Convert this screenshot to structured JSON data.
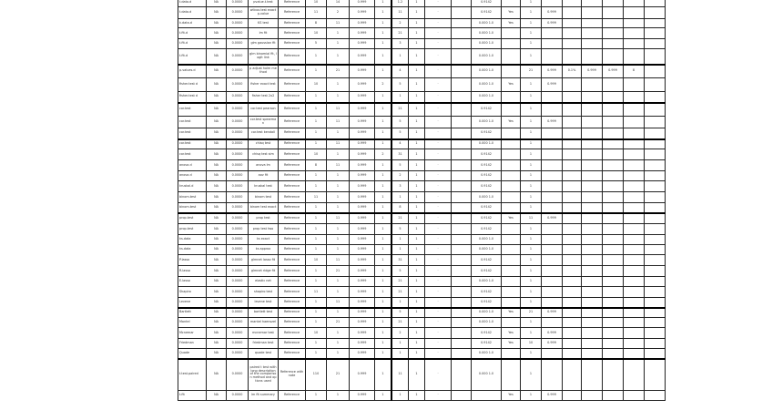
{
  "sheet": {
    "rows": [
      [
        "t.data.d",
        "NA",
        "0.0000",
        "pvalue.t.test",
        "Reference",
        "10",
        "14",
        "0.999",
        "1",
        "1.2",
        "1",
        "·",
        "",
        "0.9142",
        "",
        "1",
        "",
        "",
        "",
        "",
        "",
        ""
      ],
      [
        "t.data.d",
        "NA",
        "0.0000",
        "wilcox.test exact p-value",
        "Reference",
        "11",
        "2",
        "0.999",
        "1",
        "11",
        "1",
        "·",
        "",
        "0.9142",
        "Yes",
        "1",
        "0.999",
        "",
        "",
        "",
        "",
        ""
      ],
      [
        "k.data.d",
        "NA",
        "0.0000",
        "KS test",
        "Reference",
        "8",
        "11",
        "0.999",
        "1",
        "2",
        "1",
        "·",
        "",
        "0.000 1.0",
        "Yes",
        "1",
        "0.999",
        "",
        "",
        "",
        "",
        ""
      ],
      [
        "t.fit.d",
        "NA",
        "0.0000",
        "lm fit",
        "Reference",
        "10",
        "1",
        "0.999",
        "1",
        "21",
        "1",
        "·",
        "",
        "0.000 1.0",
        "",
        "1",
        "",
        "",
        "",
        "",
        "",
        ""
      ],
      [
        "t.fit.d",
        "NA",
        "0.0000",
        "glm gaussian fit",
        "Reference",
        "5",
        "1",
        "0.999",
        "1",
        "3",
        "1",
        "·",
        "",
        "0.000 1.0",
        "",
        "1",
        "",
        "",
        "",
        "",
        "",
        ""
      ],
      [
        "t.fit.d",
        "NA",
        "0.0000",
        "glm binomial fit, logit link",
        "Reference",
        "1",
        "1",
        "0.999",
        "1",
        "1",
        "1",
        "·",
        "",
        "0.000 1.0",
        "",
        "1",
        "",
        "",
        "",
        "",
        "",
        ""
      ],
      [
        "p.values.d",
        "NA",
        "0.0000",
        "p adjust holm method",
        "Reference",
        "1",
        "21",
        "0.999",
        "1",
        "4",
        "1",
        "·",
        "",
        "0.000 1.0",
        "",
        "21",
        "0.999",
        "0.1%",
        "0.999",
        "0.999",
        "8",
        ""
      ],
      [
        "fisher.test d",
        "NA",
        "0.0000",
        "fisher exact test",
        "Reference",
        "10",
        "1",
        "0.999",
        "2",
        "5",
        "1",
        "·",
        "",
        "0.000 1.0",
        "Yes",
        "1",
        "0.999",
        "",
        "",
        "",
        "",
        ""
      ],
      [
        "fisher.test d",
        "NA",
        "0.0000",
        "fisher test 2x2",
        "Reference",
        "1",
        "1",
        "0.999",
        "1",
        "1",
        "1",
        "·",
        "",
        "0.000 1.0",
        "",
        "1",
        "",
        "",
        "",
        "",
        "",
        ""
      ],
      [
        "cor.test",
        "NA",
        "0.0000",
        "cor.test pearson",
        "Reference",
        "1",
        "11",
        "0.999",
        "1",
        "21",
        "1",
        "·",
        "",
        "0.9142",
        "",
        "1",
        "",
        "",
        "",
        "",
        "",
        ""
      ],
      [
        "cor.test",
        "NA",
        "0.0000",
        "cor.test spearman",
        "Reference",
        "1",
        "11",
        "0.999",
        "1",
        "5",
        "1",
        "·",
        "",
        "0.000 1.0",
        "Yes",
        "1",
        "0.999",
        "",
        "",
        "",
        "",
        ""
      ],
      [
        "cor.test",
        "NA",
        "0.0000",
        "cor.test kendall",
        "Reference",
        "1",
        "1",
        "0.999",
        "1",
        "5",
        "1",
        "·",
        "",
        "0.9142",
        "",
        "1",
        "",
        "",
        "",
        "",
        "",
        ""
      ],
      [
        "cor.test",
        "NA",
        "0.0000",
        "chisq test",
        "Reference",
        "1",
        "11",
        "0.999",
        "1",
        "4",
        "1",
        "·",
        "",
        "0.000 1.0",
        "",
        "1",
        "",
        "",
        "",
        "",
        "",
        ""
      ],
      [
        "cor.test",
        "NA",
        "0.0000",
        "chisq test sim",
        "Reference",
        "10",
        "1",
        "0.999",
        "2",
        "31",
        "1",
        "·",
        "",
        "0.9142",
        "",
        "1",
        "",
        "",
        "",
        "",
        "",
        ""
      ],
      [
        "anova.d",
        "NA",
        "0.0000",
        "anova lm",
        "Reference",
        "8",
        "11",
        "0.999",
        "1",
        "5",
        "1",
        "·",
        "",
        "0.9142",
        "",
        "1",
        "",
        "",
        "",
        "",
        "",
        ""
      ],
      [
        "anova.d",
        "NA",
        "0.0000",
        "aov fit",
        "Reference",
        "1",
        "1",
        "0.999",
        "1",
        "2",
        "1",
        "·",
        "",
        "0.9142",
        "",
        "1",
        "",
        "",
        "",
        "",
        "",
        ""
      ],
      [
        "kruskal.d",
        "NA",
        "0.0000",
        "kruskal test",
        "Reference",
        "1",
        "1",
        "0.999",
        "1",
        "3",
        "1",
        "·",
        "",
        "0.9142",
        "",
        "1",
        "",
        "",
        "",
        "",
        "",
        ""
      ],
      [
        "binom.test",
        "NA",
        "0.0000",
        "binom test",
        "Reference",
        "11",
        "1",
        "0.999",
        "1",
        "1",
        "1",
        "·",
        "",
        "0.000 1.0",
        "",
        "1",
        "",
        "",
        "",
        "",
        "",
        ""
      ],
      [
        "binom.test",
        "NA",
        "0.0000",
        "binom test exact",
        "Reference",
        "1",
        "1",
        "0.999",
        "1",
        "8",
        "1",
        "·",
        "",
        "0.9142",
        "",
        "1",
        "",
        "",
        "",
        "",
        "",
        ""
      ],
      [
        "prop.test",
        "NA",
        "0.0000",
        "prop test",
        "Reference",
        "1",
        "11",
        "0.999",
        "1",
        "21",
        "1",
        "·",
        "",
        "0.9142",
        "Yes",
        "11",
        "0.999",
        "",
        "",
        "",
        "",
        ""
      ],
      [
        "prop.test",
        "NA",
        "0.0000",
        "prop test two",
        "Reference",
        "1",
        "1",
        "0.999",
        "1",
        "5",
        "1",
        "·",
        "",
        "0.9142",
        "",
        "1",
        "",
        "",
        "",
        "",
        "",
        ""
      ],
      [
        "ks.data",
        "NA",
        "0.0000",
        "ks exact",
        "Reference",
        "1",
        "1",
        "0.999",
        "1",
        "1",
        "1",
        "·",
        "",
        "0.000 1.0",
        "",
        "1",
        "",
        "",
        "",
        "",
        "",
        ""
      ],
      [
        "ks.data",
        "NA",
        "0.0000",
        "ks approx",
        "Reference",
        "1",
        "1",
        "0.999",
        "1",
        "1",
        "1",
        "·",
        "",
        "0.000 1.0",
        "",
        "1",
        "",
        "",
        "",
        "",
        "",
        ""
      ],
      [
        "P.lasso",
        "NA",
        "0.0000",
        "glmnet lasso fit",
        "Reference",
        "10",
        "11",
        "0.999",
        "1",
        "31",
        "1",
        "·",
        "",
        "0.9142",
        "",
        "1",
        "",
        "",
        "",
        "",
        "",
        ""
      ],
      [
        "R.lasso",
        "NA",
        "0.0000",
        "glmnet ridge fit",
        "Reference",
        "1",
        "21",
        "0.999",
        "1",
        "5",
        "1",
        "·",
        "",
        "0.9142",
        "",
        "1",
        "",
        "",
        "",
        "",
        "",
        ""
      ],
      [
        "E.lasso",
        "NA",
        "0.0000",
        "elastic net",
        "Reference",
        "1",
        "1",
        "0.999",
        "1",
        "21",
        "1",
        "·",
        "",
        "0.000 1.0",
        "",
        "1",
        "",
        "",
        "",
        "",
        "",
        ""
      ],
      [
        "Shapiro",
        "NA",
        "0.0000",
        "shapiro test",
        "Reference",
        "11",
        "1",
        "0.999",
        "1",
        "21",
        "1",
        "·",
        "",
        "0.9142",
        "",
        "1",
        "",
        "",
        "",
        "",
        "",
        ""
      ],
      [
        "Levene",
        "NA",
        "0.0000",
        "levene test",
        "Reference",
        "1",
        "11",
        "0.999",
        "1",
        "1",
        "1",
        "·",
        "",
        "0.9142",
        "",
        "1",
        "",
        "",
        "",
        "",
        "",
        ""
      ],
      [
        "Bartlett",
        "NA",
        "0.0000",
        "bartlett test",
        "Reference",
        "1",
        "1",
        "0.999",
        "1",
        "5",
        "1",
        "·",
        "",
        "0.000 1.0",
        "Yes",
        "21",
        "0.999",
        "",
        "",
        "",
        "",
        ""
      ],
      [
        "Mantel",
        "NA",
        "0.0000",
        "mantel haenszel",
        "Reference",
        "1",
        "21",
        "0.999",
        "1",
        "21",
        "1",
        "·",
        "",
        "0.000 1.0",
        "",
        "1",
        "",
        "",
        "",
        "",
        "",
        ""
      ],
      [
        "Mcnemar",
        "NA",
        "0.0000",
        "mcnemar test",
        "Reference",
        "10",
        "1",
        "0.999",
        "1",
        "2",
        "1",
        "·",
        "",
        "0.9142",
        "Yes",
        "1",
        "0.999",
        "",
        "",
        "",
        "",
        ""
      ],
      [
        "Friedman",
        "NA",
        "0.0000",
        "friedman test",
        "Reference",
        "1",
        "1",
        "0.999",
        "1",
        "1",
        "1",
        "·",
        "",
        "0.9142",
        "Yes",
        "10",
        "0.999",
        "",
        "",
        "",
        "",
        ""
      ],
      [
        "Quade",
        "NA",
        "0.0000",
        "quade test",
        "Reference",
        "1",
        "1",
        "0.999",
        "1",
        "1",
        "1",
        "·",
        "",
        "0.000 1.0",
        "",
        "1",
        "",
        "",
        "",
        "",
        "",
        ""
      ],
      [
        "t.test.paired",
        "NA",
        "0.0000",
        "paired t test with long description of the comparison method and options used",
        "Reference with note",
        "110",
        "21",
        "0.999",
        "1",
        "11",
        "1",
        "·",
        "",
        "0.000 1.0",
        "",
        "1",
        "",
        "",
        "",
        "",
        "",
        ""
      ],
      [
        "t.fit",
        "NA",
        "0.0000",
        "lm fit summary",
        "Reference",
        "1",
        "1",
        "0.999",
        "1",
        "1",
        "1",
        "·",
        "",
        "",
        "Yes",
        "1",
        "0.999",
        "",
        "",
        "",
        "",
        ""
      ]
    ]
  }
}
